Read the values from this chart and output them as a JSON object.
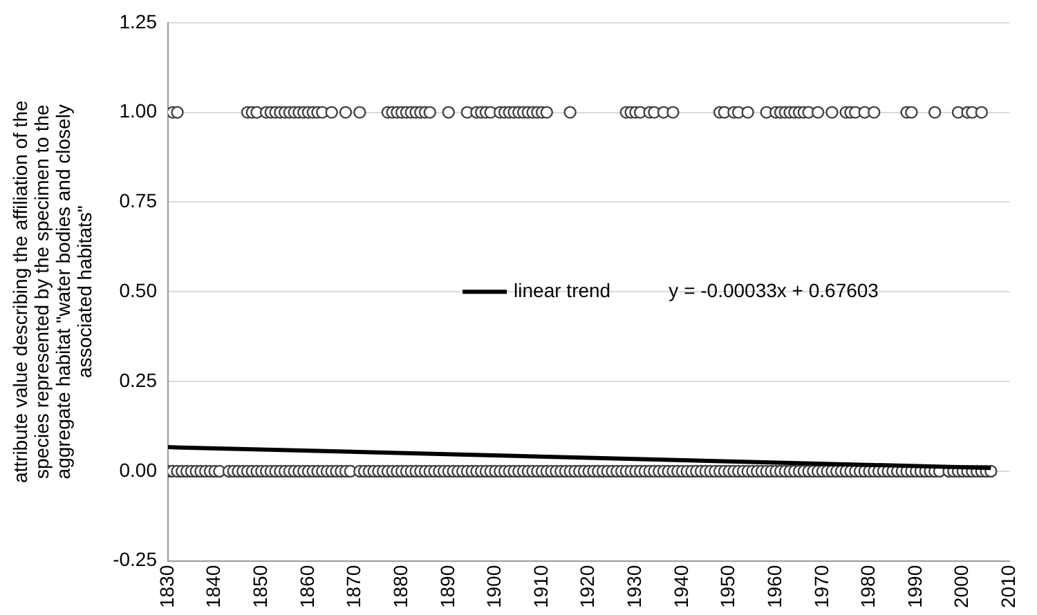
{
  "chart_data": {
    "type": "scatter",
    "ylabel": "attribute value describing the affiliation of the\nspecies represented by the specimen to the\naggregate habitat \"water bodies and closely\nassociated habitats\"",
    "xlim": [
      1830,
      2010
    ],
    "xticks": [
      1830,
      1840,
      1850,
      1860,
      1870,
      1880,
      1890,
      1900,
      1910,
      1920,
      1930,
      1940,
      1950,
      1960,
      1970,
      1980,
      1990,
      2000,
      2010
    ],
    "ylim": [
      -0.25,
      1.25
    ],
    "yticks": [
      {
        "value": -0.25,
        "label": "-0.25"
      },
      {
        "value": 0,
        "label": "0.00"
      },
      {
        "value": 0.25,
        "label": "0.25"
      },
      {
        "value": 0.5,
        "label": "0.50"
      },
      {
        "value": 0.75,
        "label": "0.75"
      },
      {
        "value": 1,
        "label": "1.00"
      },
      {
        "value": 1.25,
        "label": "1.25"
      }
    ],
    "grid": "y",
    "legend": "center",
    "annotations": [
      "y = -0.00033x + 0.67603"
    ],
    "series": [
      {
        "color": "#404040",
        "marker": "circle",
        "x": [
          1831,
          1832,
          1847,
          1848,
          1849,
          1851,
          1852,
          1853,
          1854,
          1855,
          1856,
          1857,
          1858,
          1859,
          1860,
          1861,
          1862,
          1863,
          1865,
          1868,
          1871,
          1877,
          1878,
          1879,
          1880,
          1881,
          1882,
          1883,
          1884,
          1885,
          1886,
          1890,
          1894,
          1896,
          1897,
          1898,
          1899,
          1901,
          1902,
          1903,
          1904,
          1905,
          1906,
          1907,
          1908,
          1909,
          1910,
          1911,
          1916,
          1928,
          1929,
          1930,
          1931,
          1933,
          1934,
          1936,
          1938,
          1948,
          1949,
          1951,
          1952,
          1954,
          1958,
          1960,
          1961,
          1962,
          1963,
          1964,
          1965,
          1966,
          1967,
          1969,
          1972,
          1975,
          1976,
          1977,
          1979,
          1981,
          1988,
          1989,
          1994,
          1999,
          2001,
          2002,
          2004
        ],
        "values": [
          1,
          1,
          1,
          1,
          1,
          1,
          1,
          1,
          1,
          1,
          1,
          1,
          1,
          1,
          1,
          1,
          1,
          1,
          1,
          1,
          1,
          1,
          1,
          1,
          1,
          1,
          1,
          1,
          1,
          1,
          1,
          1,
          1,
          1,
          1,
          1,
          1,
          1,
          1,
          1,
          1,
          1,
          1,
          1,
          1,
          1,
          1,
          1,
          1,
          1,
          1,
          1,
          1,
          1,
          1,
          1,
          1,
          1,
          1,
          1,
          1,
          1,
          1,
          1,
          1,
          1,
          1,
          1,
          1,
          1,
          1,
          1,
          1,
          1,
          1,
          1,
          1,
          1,
          1,
          1,
          1,
          1,
          1,
          1,
          1
        ]
      },
      {
        "color": "#404040",
        "marker": "circle",
        "x": [
          1830,
          1831,
          1832,
          1833,
          1834,
          1835,
          1836,
          1837,
          1838,
          1839,
          1840,
          1841,
          1843,
          1844,
          1845,
          1846,
          1847,
          1848,
          1849,
          1850,
          1851,
          1852,
          1853,
          1854,
          1855,
          1856,
          1857,
          1858,
          1859,
          1860,
          1861,
          1862,
          1863,
          1864,
          1865,
          1866,
          1867,
          1868,
          1869,
          1871,
          1872,
          1873,
          1874,
          1875,
          1876,
          1877,
          1878,
          1879,
          1880,
          1881,
          1882,
          1883,
          1884,
          1885,
          1886,
          1887,
          1888,
          1889,
          1890,
          1891,
          1892,
          1893,
          1894,
          1895,
          1896,
          1897,
          1898,
          1899,
          1900,
          1901,
          1902,
          1903,
          1904,
          1905,
          1906,
          1907,
          1908,
          1909,
          1910,
          1911,
          1912,
          1913,
          1914,
          1915,
          1916,
          1917,
          1918,
          1919,
          1920,
          1921,
          1922,
          1923,
          1924,
          1925,
          1926,
          1927,
          1928,
          1929,
          1930,
          1931,
          1932,
          1933,
          1934,
          1935,
          1936,
          1937,
          1938,
          1939,
          1940,
          1941,
          1942,
          1943,
          1944,
          1945,
          1946,
          1947,
          1948,
          1949,
          1950,
          1951,
          1952,
          1953,
          1954,
          1955,
          1956,
          1957,
          1958,
          1959,
          1960,
          1961,
          1962,
          1963,
          1964,
          1965,
          1966,
          1967,
          1968,
          1969,
          1970,
          1971,
          1972,
          1973,
          1974,
          1975,
          1976,
          1977,
          1978,
          1979,
          1980,
          1981,
          1982,
          1983,
          1984,
          1985,
          1986,
          1987,
          1988,
          1989,
          1990,
          1991,
          1992,
          1993,
          1994,
          1995,
          1997,
          1998,
          1999,
          2000,
          2001,
          2002,
          2003,
          2004,
          2005,
          2006
        ],
        "values": [
          0,
          0,
          0,
          0,
          0,
          0,
          0,
          0,
          0,
          0,
          0,
          0,
          0,
          0,
          0,
          0,
          0,
          0,
          0,
          0,
          0,
          0,
          0,
          0,
          0,
          0,
          0,
          0,
          0,
          0,
          0,
          0,
          0,
          0,
          0,
          0,
          0,
          0,
          0,
          0,
          0,
          0,
          0,
          0,
          0,
          0,
          0,
          0,
          0,
          0,
          0,
          0,
          0,
          0,
          0,
          0,
          0,
          0,
          0,
          0,
          0,
          0,
          0,
          0,
          0,
          0,
          0,
          0,
          0,
          0,
          0,
          0,
          0,
          0,
          0,
          0,
          0,
          0,
          0,
          0,
          0,
          0,
          0,
          0,
          0,
          0,
          0,
          0,
          0,
          0,
          0,
          0,
          0,
          0,
          0,
          0,
          0,
          0,
          0,
          0,
          0,
          0,
          0,
          0,
          0,
          0,
          0,
          0,
          0,
          0,
          0,
          0,
          0,
          0,
          0,
          0,
          0,
          0,
          0,
          0,
          0,
          0,
          0,
          0,
          0,
          0,
          0,
          0,
          0,
          0,
          0,
          0,
          0,
          0,
          0,
          0,
          0,
          0,
          0,
          0,
          0,
          0,
          0,
          0,
          0,
          0,
          0,
          0,
          0,
          0,
          0,
          0,
          0,
          0,
          0,
          0,
          0,
          0,
          0,
          0,
          0,
          0,
          0,
          0,
          0,
          0,
          0,
          0,
          0,
          0,
          0,
          0,
          0,
          0
        ]
      },
      {
        "type": "line",
        "marker": "none",
        "name": "linear trend",
        "color": "#000000",
        "x": [
          1830,
          2006
        ],
        "values": [
          0.067,
          0.009
        ]
      }
    ]
  }
}
